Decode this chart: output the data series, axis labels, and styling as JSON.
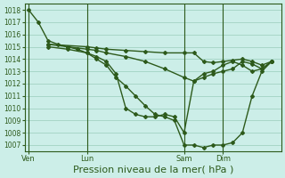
{
  "bg_color": "#cceee8",
  "grid_color": "#99ccbb",
  "line_color": "#2d5a1b",
  "marker_color": "#2d5a1b",
  "xlabel": "Pression niveau de la mer( hPa )",
  "xlabel_fontsize": 8,
  "ylim": [
    1006.5,
    1018.5
  ],
  "yticks": [
    1007,
    1008,
    1009,
    1010,
    1011,
    1012,
    1013,
    1014,
    1015,
    1016,
    1017,
    1018
  ],
  "xtick_labels": [
    "Ven",
    "Lun",
    "Sam",
    "Dim"
  ],
  "xtick_positions": [
    0,
    3,
    8,
    10
  ],
  "vline_positions": [
    0,
    3,
    8,
    10
  ],
  "xlim": [
    -0.2,
    13
  ],
  "series": [
    {
      "x": [
        1,
        3,
        3.5,
        4,
        5,
        6,
        7,
        8,
        8.5,
        9,
        9.5,
        10,
        10.5,
        11,
        11.5,
        12,
        12.5
      ],
      "y": [
        1015.2,
        1015.0,
        1014.9,
        1014.8,
        1014.7,
        1014.6,
        1014.5,
        1014.5,
        1014.5,
        1013.8,
        1013.7,
        1013.8,
        1013.9,
        1014.0,
        1013.8,
        1013.5,
        1013.8
      ],
      "marker": "D",
      "markersize": 2.0,
      "linewidth": 1.0
    },
    {
      "x": [
        1,
        2,
        3,
        3.5,
        4,
        5,
        6,
        7,
        8,
        8.5,
        9,
        9.5,
        10,
        10.5,
        11,
        11.5,
        12,
        12.5
      ],
      "y": [
        1015.2,
        1015.0,
        1014.8,
        1014.7,
        1014.5,
        1014.2,
        1013.8,
        1013.2,
        1012.5,
        1012.2,
        1012.5,
        1012.8,
        1013.0,
        1013.2,
        1013.8,
        1013.6,
        1013.2,
        1013.8
      ],
      "marker": "D",
      "markersize": 2.0,
      "linewidth": 1.0
    },
    {
      "x": [
        1,
        2,
        3,
        3.5,
        4,
        4.5,
        5,
        5.5,
        6,
        6.5,
        7,
        7.5,
        8,
        8.5,
        9,
        9.5,
        10,
        10.5,
        11,
        11.5,
        12,
        12.5
      ],
      "y": [
        1015.0,
        1014.8,
        1014.5,
        1014.2,
        1013.8,
        1012.8,
        1010.0,
        1009.5,
        1009.3,
        1009.3,
        1009.5,
        1009.3,
        1008.0,
        1012.2,
        1012.8,
        1013.0,
        1013.5,
        1013.8,
        1013.5,
        1013.0,
        1013.2,
        1013.8
      ],
      "marker": "D",
      "markersize": 2.0,
      "linewidth": 1.0
    },
    {
      "x": [
        0,
        0.5,
        1,
        1.5,
        2,
        2.5,
        3,
        3.5,
        4,
        4.5,
        5,
        5.5,
        6,
        6.5,
        7,
        7.5,
        8,
        8.5,
        9,
        9.5,
        10,
        10.5,
        11,
        11.5,
        12,
        12.5
      ],
      "y": [
        1018,
        1017,
        1015.5,
        1015.2,
        1015.0,
        1014.8,
        1014.5,
        1014.0,
        1013.5,
        1012.5,
        1011.8,
        1011.0,
        1010.2,
        1009.5,
        1009.3,
        1009.0,
        1007.0,
        1007.0,
        1006.8,
        1007.0,
        1007.0,
        1007.2,
        1008.0,
        1011.0,
        1013.0,
        1013.8
      ],
      "marker": "D",
      "markersize": 2.0,
      "linewidth": 1.0
    }
  ]
}
